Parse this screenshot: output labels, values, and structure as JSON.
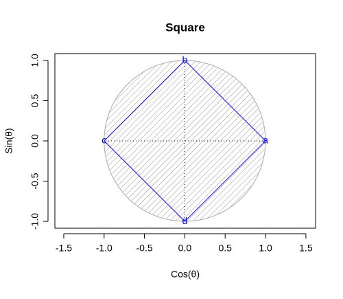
{
  "chart_data": {
    "type": "polygon",
    "title": "Square",
    "x_label": "Cos(θ)",
    "y_label": "Sin(θ)",
    "x": [
      1,
      0,
      -1,
      0
    ],
    "y": [
      0,
      1,
      0,
      -1
    ],
    "labels": [
      "a",
      "b",
      "c",
      "d"
    ],
    "color": "#0000ff",
    "circle": {
      "radius": 1,
      "color": "#aaaaaa"
    },
    "xlim": [
      -1.61,
      1.62
    ],
    "ylim": [
      -1.085,
      1.085
    ],
    "xticks": [
      -1.5,
      {
        "value": -1,
        "label": "-1.0"
      },
      -0.5,
      {
        "value": 0,
        "label": "0.0"
      },
      0.5,
      {
        "value": 1,
        "label": "1.0"
      },
      1.5
    ],
    "yticks": [
      {
        "value": -1,
        "label": "-1.0"
      },
      -0.5,
      {
        "value": 0,
        "label": "0.0"
      },
      0.5,
      {
        "value": 1,
        "label": "1.0"
      }
    ]
  }
}
